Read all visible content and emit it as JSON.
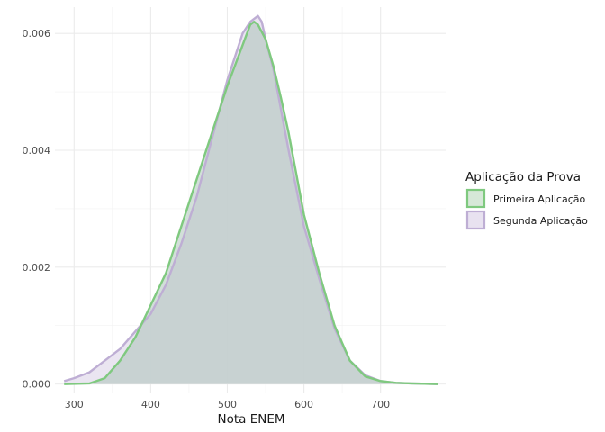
{
  "chart_data": {
    "type": "area",
    "title": "",
    "xlabel": "Nota ENEM",
    "ylabel": "",
    "xlim": [
      275,
      785
    ],
    "ylim": [
      -0.00016,
      0.00645
    ],
    "x_ticks": [
      300,
      400,
      500,
      600,
      700
    ],
    "x_tick_labels": [
      "300",
      "400",
      "500",
      "600",
      "700"
    ],
    "y_ticks": [
      0,
      0.002,
      0.004,
      0.006
    ],
    "y_tick_labels": [
      "0.000",
      "0.002",
      "0.004",
      "0.006"
    ],
    "grid": true,
    "legend": {
      "title": "Aplicação da Prova",
      "position": "right"
    },
    "series": [
      {
        "name": "Primeira Aplicação",
        "line_color": "#7fc97f",
        "fill_color": "#a5bfb3",
        "x": [
          287,
          320,
          340,
          360,
          380,
          400,
          420,
          440,
          460,
          480,
          500,
          520,
          530,
          535,
          540,
          550,
          560,
          570,
          580,
          600,
          620,
          640,
          660,
          680,
          700,
          720,
          740,
          775
        ],
        "y": [
          0.0,
          1e-05,
          0.0001,
          0.0004,
          0.0008,
          0.00135,
          0.0019,
          0.0027,
          0.0035,
          0.0043,
          0.0051,
          0.0058,
          0.00615,
          0.0062,
          0.00615,
          0.0059,
          0.00545,
          0.0049,
          0.0043,
          0.0029,
          0.0019,
          0.001,
          0.0004,
          0.00013,
          5e-05,
          2e-05,
          1e-05,
          0.0
        ]
      },
      {
        "name": "Segunda Aplicação",
        "line_color": "#beaed4",
        "fill_color": "#e8e2f0",
        "x": [
          287,
          300,
          320,
          340,
          360,
          380,
          400,
          420,
          440,
          460,
          480,
          500,
          520,
          530,
          540,
          545,
          550,
          560,
          570,
          580,
          600,
          620,
          640,
          660,
          680,
          700,
          720,
          740,
          775
        ],
        "y": [
          5e-05,
          0.0001,
          0.0002,
          0.0004,
          0.0006,
          0.0009,
          0.0012,
          0.0017,
          0.0024,
          0.0032,
          0.0042,
          0.0052,
          0.006,
          0.0062,
          0.0063,
          0.0062,
          0.0059,
          0.0054,
          0.0047,
          0.004,
          0.0027,
          0.0018,
          0.00095,
          0.0004,
          0.00015,
          5e-05,
          2e-05,
          1e-05,
          0.0
        ]
      }
    ]
  }
}
